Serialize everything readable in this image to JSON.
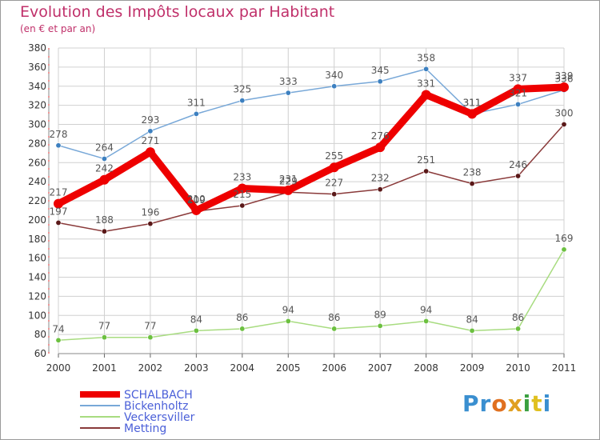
{
  "title": "Evolution des Impôts locaux par Habitant",
  "subtitle": "(en € et par an)",
  "logo_text": "Proxiti",
  "chart_data": {
    "type": "line",
    "title": "Evolution des Impôts locaux par Habitant",
    "subtitle": "(en € et par an)",
    "xlabel": "",
    "ylabel": "",
    "ylim": [
      60,
      380
    ],
    "ytick_step": 20,
    "yticks": [
      "60",
      "80",
      "100",
      "120",
      "140",
      "160",
      "180",
      "200",
      "220",
      "240",
      "260",
      "280",
      "300",
      "320",
      "340",
      "360",
      "380"
    ],
    "grid": true,
    "legend_position": "bottom-left",
    "x": [
      "2000",
      "2001",
      "2002",
      "2003",
      "2004",
      "2005",
      "2006",
      "2007",
      "2008",
      "2009",
      "2010",
      "2011"
    ],
    "series": [
      {
        "name": "SCHALBACH",
        "values": [
          217,
          242,
          271,
          210,
          233,
          231,
          255,
          276,
          331,
          311,
          337,
          339
        ],
        "labels": [
          "217",
          "242",
          "271",
          "210",
          "233",
          "231",
          "255",
          "276",
          "331",
          "311",
          "337",
          "339"
        ],
        "color": "#ee0000",
        "point_color": "#ee0000",
        "emphasis": true
      },
      {
        "name": "Bickenholtz",
        "values": [
          278,
          264,
          293,
          311,
          325,
          333,
          340,
          345,
          358,
          311,
          321,
          336
        ],
        "labels": [
          "278",
          "264",
          "293",
          "311",
          "325",
          "333",
          "340",
          "345",
          "358",
          "311",
          "321",
          "336"
        ],
        "color": "#78a8d8",
        "point_color": "#3d80c0",
        "emphasis": false
      },
      {
        "name": "Veckersviller",
        "values": [
          74,
          77,
          77,
          84,
          86,
          94,
          86,
          89,
          94,
          84,
          86,
          169
        ],
        "labels": [
          "74",
          "77",
          "77",
          "84",
          "86",
          "94",
          "86",
          "89",
          "94",
          "84",
          "86",
          "169"
        ],
        "color": "#a8dc80",
        "point_color": "#6cc040",
        "emphasis": false
      },
      {
        "name": "Metting",
        "values": [
          197,
          188,
          196,
          209,
          215,
          229,
          227,
          232,
          251,
          238,
          246,
          300
        ],
        "labels": [
          "197",
          "188",
          "196",
          "209",
          "215",
          "229",
          "227",
          "232",
          "251",
          "238",
          "246",
          "300"
        ],
        "color": "#8a3a3a",
        "point_color": "#5a1818",
        "emphasis": false
      }
    ]
  },
  "colors": {
    "title": "#c0306a",
    "axis_text": "#333333",
    "grid": "#d0d0d0",
    "legend_text": "#4a5fd8",
    "value_label": "#555555"
  }
}
